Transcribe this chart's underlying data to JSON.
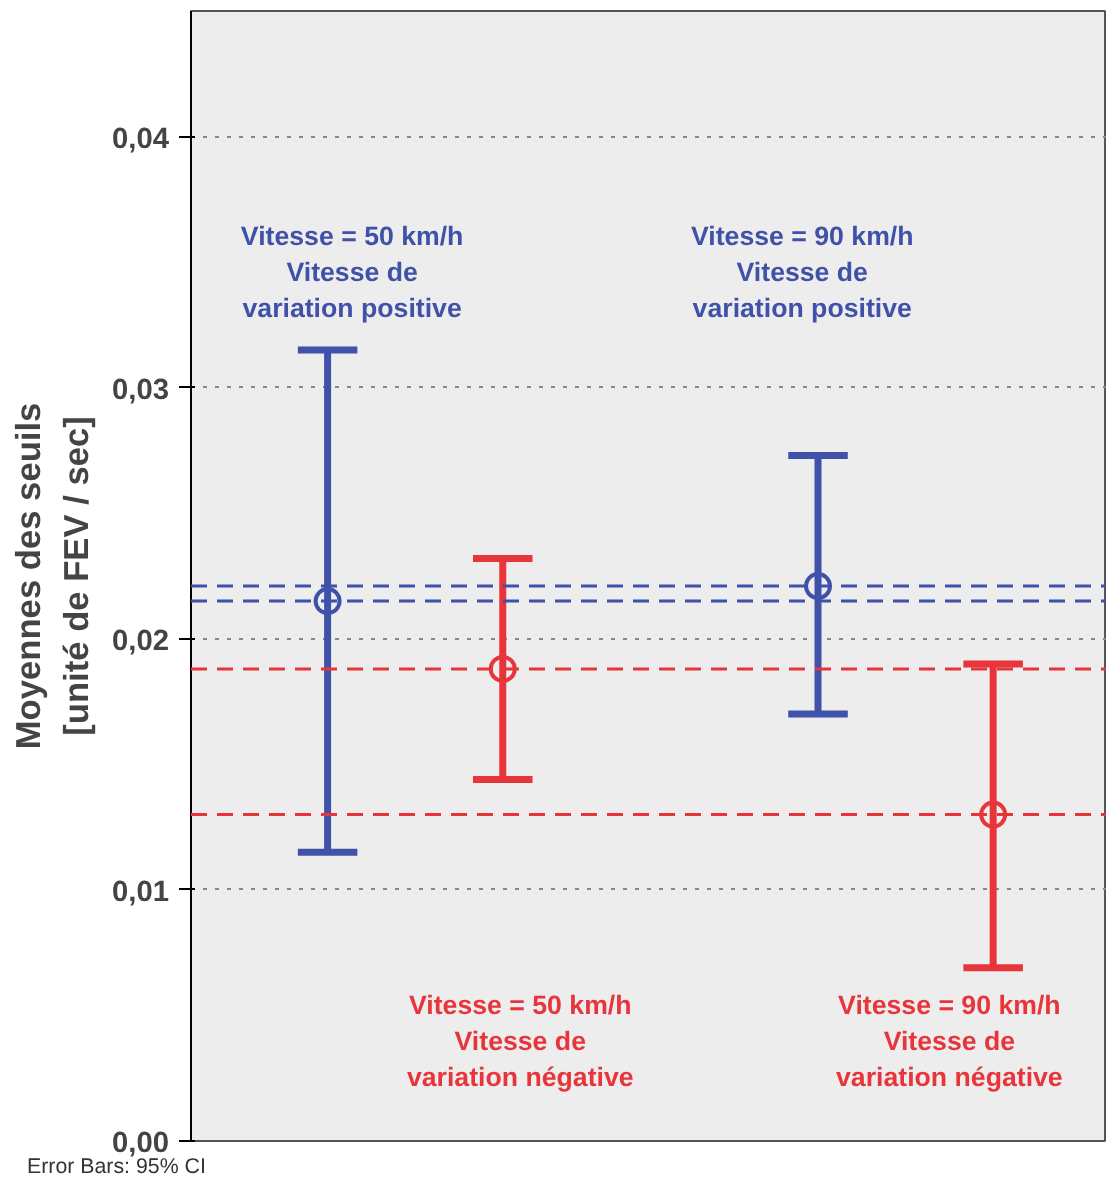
{
  "chart_data": {
    "type": "scatter",
    "ylabel": "Moyennes des seuils\n[unité de FEV / sec]",
    "categories": [
      null,
      null,
      null,
      null
    ],
    "values": [
      0.0215,
      0.0188,
      0.0221,
      0.013
    ],
    "errors": [
      [
        0.0115,
        0.0315
      ],
      [
        0.0144,
        0.0232
      ],
      [
        0.017,
        0.0273
      ],
      [
        0.0069,
        0.019
      ]
    ],
    "colors": [
      "#3f51a8",
      "#e8343b",
      "#3f51a8",
      "#e8343b"
    ],
    "marker": "circle",
    "ylim": [
      0,
      0.045
    ],
    "yticks": [
      {
        "value": 0,
        "label": "0,00"
      },
      {
        "value": 0.01,
        "label": "0,01"
      },
      {
        "value": 0.02,
        "label": "0,02"
      },
      {
        "value": 0.03,
        "label": "0,03"
      },
      {
        "value": 0.04,
        "label": "0,04"
      }
    ],
    "grid": "y",
    "tick_labels": "y",
    "ref_lines": [
      {
        "axis": "y",
        "value": 0.0221,
        "label": null,
        "color": "#3f51a8",
        "line_style": "dashed"
      },
      {
        "axis": "y",
        "value": 0.0215,
        "label": null,
        "color": "#3f51a8",
        "line_style": "dashed"
      },
      {
        "axis": "y",
        "value": 0.0188,
        "label": null,
        "color": "#e8343b",
        "line_style": "dashed"
      },
      {
        "axis": "y",
        "value": 0.013,
        "label": null,
        "color": "#e8343b",
        "line_style": "dashed"
      }
    ],
    "annotations": [
      "Vitesse = 50 km/h\nVitesse de\nvariation positive",
      "Vitesse = 50 km/h\nVitesse de\nvariation négative",
      "Vitesse = 90 km/h\nVitesse de\nvariation positive",
      "Vitesse = 90 km/h\nVitesse de\nvariation négative",
      "Error Bars: 95% CI"
    ]
  }
}
